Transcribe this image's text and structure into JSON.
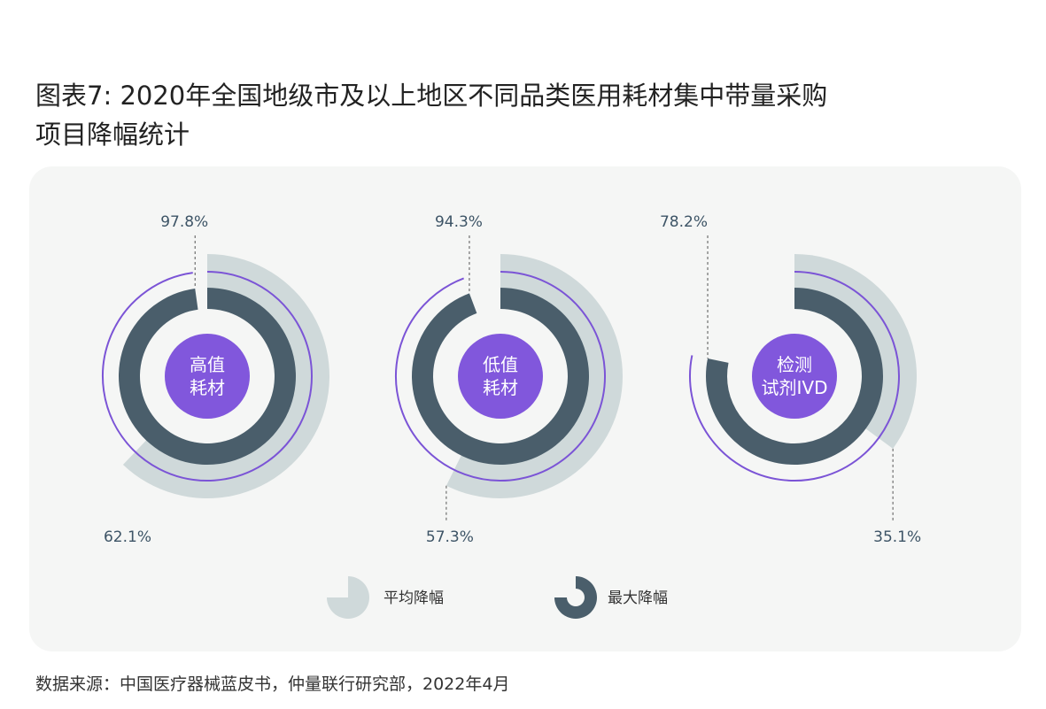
{
  "title": {
    "line1": "图表7: 2020年全国地级市及以上地区不同品类医用耗材集中带量采购",
    "line2": "项目降幅统计"
  },
  "colors": {
    "panel_bg": "#f5f6f5",
    "average_drop": "#cfd9da",
    "max_drop": "#4a5e6b",
    "outline": "#7b54d6",
    "center": "#8157dc",
    "label_text": "#3d5466"
  },
  "chart_data": [
    {
      "type": "pie",
      "category": "高值耗材",
      "center_lines": [
        "高值",
        "耗材"
      ],
      "max_drop_pct": 97.8,
      "avg_drop_pct": 62.1,
      "max_label": "97.8%",
      "avg_label": "62.1%"
    },
    {
      "type": "pie",
      "category": "低值耗材",
      "center_lines": [
        "低值",
        "耗材"
      ],
      "max_drop_pct": 94.3,
      "avg_drop_pct": 57.3,
      "max_label": "94.3%",
      "avg_label": "57.3%"
    },
    {
      "type": "pie",
      "category": "检测试剂IVD",
      "center_lines": [
        "检测",
        "试剂IVD"
      ],
      "max_drop_pct": 78.2,
      "avg_drop_pct": 35.1,
      "max_label": "78.2%",
      "avg_label": "35.1%"
    }
  ],
  "legend": {
    "average_label": "平均降幅",
    "max_label": "最大降幅",
    "average_icon": "quarter-pie-icon",
    "max_icon": "ring-arc-icon"
  },
  "source": "数据来源：中国医疗器械蓝皮书，仲量联行研究部，2022年4月"
}
